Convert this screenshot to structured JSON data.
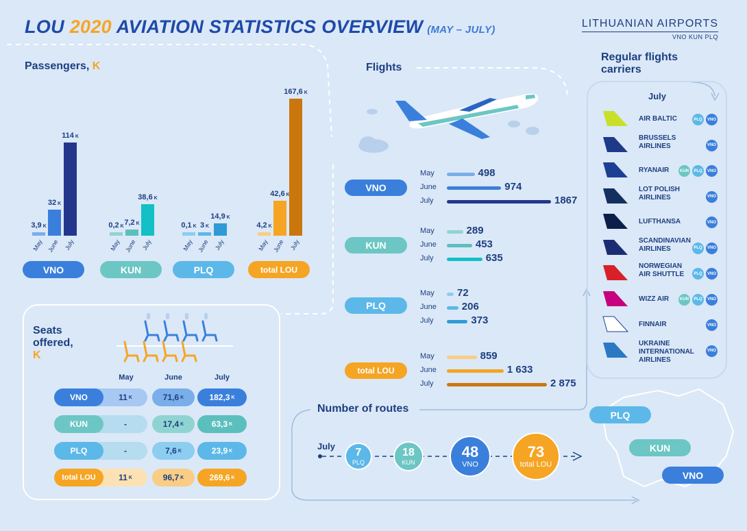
{
  "header": {
    "title_a": "LOU ",
    "title_year": "2020",
    "title_b": " AVIATION STATISTICS OVERVIEW",
    "title_period": "(MAY – JULY)",
    "logo_main": "LITHUANIAN AIRPORTS",
    "logo_sub": "VNO KUN PLQ"
  },
  "passengers": {
    "heading": "Passengers, ",
    "unit": "K",
    "k_suffix": "K",
    "groups": [
      {
        "label": "VNO",
        "color": "#3a7fdc",
        "values": [
          {
            "month": "May",
            "value": 3.9,
            "text": "3,9",
            "color": "#7aaeea"
          },
          {
            "month": "June",
            "value": 32,
            "text": "32",
            "color": "#3a7fdc"
          },
          {
            "month": "July",
            "value": 114,
            "text": "114",
            "color": "#23368c"
          }
        ]
      },
      {
        "label": "KUN",
        "color": "#6cc6c4",
        "values": [
          {
            "month": "May",
            "value": 0.2,
            "text": "0,2",
            "color": "#8fd4d2"
          },
          {
            "month": "June",
            "value": 7.2,
            "text": "7,2",
            "color": "#5bbfbd"
          },
          {
            "month": "July",
            "value": 38.6,
            "text": "38,6",
            "color": "#12c0c6"
          }
        ]
      },
      {
        "label": "PLQ",
        "color": "#5cb8e8",
        "values": [
          {
            "month": "May",
            "value": 0.1,
            "text": "0,1",
            "color": "#8ccdf0"
          },
          {
            "month": "June",
            "value": 3,
            "text": "3",
            "color": "#5cb8e8"
          },
          {
            "month": "July",
            "value": 14.9,
            "text": "14,9",
            "color": "#2f9ad6"
          }
        ]
      },
      {
        "label": "total LOU",
        "color": "#f5a523",
        "values": [
          {
            "month": "May",
            "value": 4.2,
            "text": "4,2",
            "color": "#f9cd85"
          },
          {
            "month": "June",
            "value": 42.6,
            "text": "42,6",
            "color": "#f5a523"
          },
          {
            "month": "July",
            "value": 167.6,
            "text": "167,6",
            "color": "#c9770d"
          }
        ]
      }
    ]
  },
  "flights": {
    "heading": "Flights",
    "groups": [
      {
        "label": "VNO",
        "color": "#3a7fdc",
        "rows": [
          {
            "month": "May",
            "value": 498,
            "text": "498",
            "color": "#7aaeea"
          },
          {
            "month": "June",
            "value": 974,
            "text": "974",
            "color": "#3a7fdc"
          },
          {
            "month": "July",
            "value": 1867,
            "text": "1867",
            "color": "#23368c"
          }
        ]
      },
      {
        "label": "KUN",
        "color": "#6cc6c4",
        "rows": [
          {
            "month": "May",
            "value": 289,
            "text": "289",
            "color": "#8fd4d2"
          },
          {
            "month": "June",
            "value": 453,
            "text": "453",
            "color": "#5bbfbd"
          },
          {
            "month": "July",
            "value": 635,
            "text": "635",
            "color": "#12c0c6"
          }
        ]
      },
      {
        "label": "PLQ",
        "color": "#5cb8e8",
        "rows": [
          {
            "month": "May",
            "value": 72,
            "text": "72",
            "color": "#8ccdf0"
          },
          {
            "month": "June",
            "value": 206,
            "text": "206",
            "color": "#5cb8e8"
          },
          {
            "month": "July",
            "value": 373,
            "text": "373",
            "color": "#2f9ad6"
          }
        ]
      },
      {
        "label": "total LOU",
        "color": "#f5a523",
        "rows": [
          {
            "month": "May",
            "value": 859,
            "text": "859",
            "color": "#f9cd85"
          },
          {
            "month": "June",
            "value": 1633,
            "text": "1 633",
            "color": "#f5a523"
          },
          {
            "month": "July",
            "value": 2875,
            "text": "2 875",
            "color": "#c9770d"
          }
        ]
      }
    ]
  },
  "carriers": {
    "heading": "Regular flights carriers",
    "month": "July",
    "items": [
      {
        "name": "AIR BALTIC",
        "tail": "#c8e02a",
        "airports": [
          "PLQ",
          "VNO"
        ]
      },
      {
        "name": "BRUSSELS AIRLINES",
        "tail": "#1d3a8a",
        "airports": [
          "VNO"
        ]
      },
      {
        "name": "RYANAIR",
        "tail": "#1c3f94",
        "airports": [
          "KUN",
          "PLQ",
          "VNO"
        ]
      },
      {
        "name": "LOT POLISH AIRLINES",
        "tail": "#13305f",
        "airports": [
          "VNO"
        ]
      },
      {
        "name": "LUFTHANSA",
        "tail": "#0b1f4a",
        "airports": [
          "VNO"
        ]
      },
      {
        "name": "SCANDINAVIAN AIRLINES",
        "tail": "#1c2c74",
        "airports": [
          "PLQ",
          "VNO"
        ]
      },
      {
        "name": "NORWEGIAN AIR SHUTTLE",
        "tail": "#d8202a",
        "airports": [
          "PLQ",
          "VNO"
        ]
      },
      {
        "name": "WIZZ AIR",
        "tail": "#c6007e",
        "airports": [
          "KUN",
          "PLQ",
          "VNO"
        ]
      },
      {
        "name": "FINNAIR",
        "tail": "#ffffff",
        "airports": [
          "VNO"
        ]
      },
      {
        "name": "UKRAINE INTERNATIONAL AIRLINES",
        "tail": "#2b79c2",
        "airports": [
          "VNO"
        ]
      }
    ]
  },
  "seats": {
    "heading_a": "Seats",
    "heading_b": "offered,",
    "unit": "K",
    "k_suffix": "K",
    "months": [
      "May",
      "June",
      "July"
    ],
    "rows": [
      {
        "label": "VNO",
        "color": "#3a7fdc",
        "may": "11",
        "june": "71,6",
        "july": "182,3",
        "c1": "#a6c8f2",
        "c2": "#7aaeea",
        "c3": "#3a7fdc",
        "dark_label": false
      },
      {
        "label": "KUN",
        "color": "#6cc6c4",
        "may": "-",
        "june": "17,4",
        "july": "63,3",
        "c1": "#b5dcef",
        "c2": "#8fd4d2",
        "c3": "#5bbfbd",
        "dark_label": false
      },
      {
        "label": "PLQ",
        "color": "#5cb8e8",
        "may": "-",
        "june": "7,6",
        "july": "23,9",
        "c1": "#b5dcef",
        "c2": "#8ccdf0",
        "c3": "#5cb8e8",
        "dark_label": false
      },
      {
        "label": "total LOU",
        "color": "#f5a523",
        "may": "11",
        "june": "96,7",
        "july": "269,6",
        "c1": "#fbe1b3",
        "c2": "#f9cd85",
        "c3": "#f5a523",
        "dark_label": false
      }
    ]
  },
  "routes": {
    "heading": "Number of routes",
    "month": "July",
    "items": [
      {
        "value": "7",
        "label": "PLQ",
        "color": "#5cb8e8"
      },
      {
        "value": "18",
        "label": "KUN",
        "color": "#6cc6c4"
      },
      {
        "value": "48",
        "label": "VNO",
        "color": "#3a7fdc"
      },
      {
        "value": "73",
        "label": "total LOU",
        "color": "#f5a523"
      }
    ]
  },
  "map": {
    "labels": [
      {
        "text": "PLQ",
        "color": "#5cb8e8"
      },
      {
        "text": "KUN",
        "color": "#6cc6c4"
      },
      {
        "text": "VNO",
        "color": "#3a7fdc"
      }
    ]
  }
}
